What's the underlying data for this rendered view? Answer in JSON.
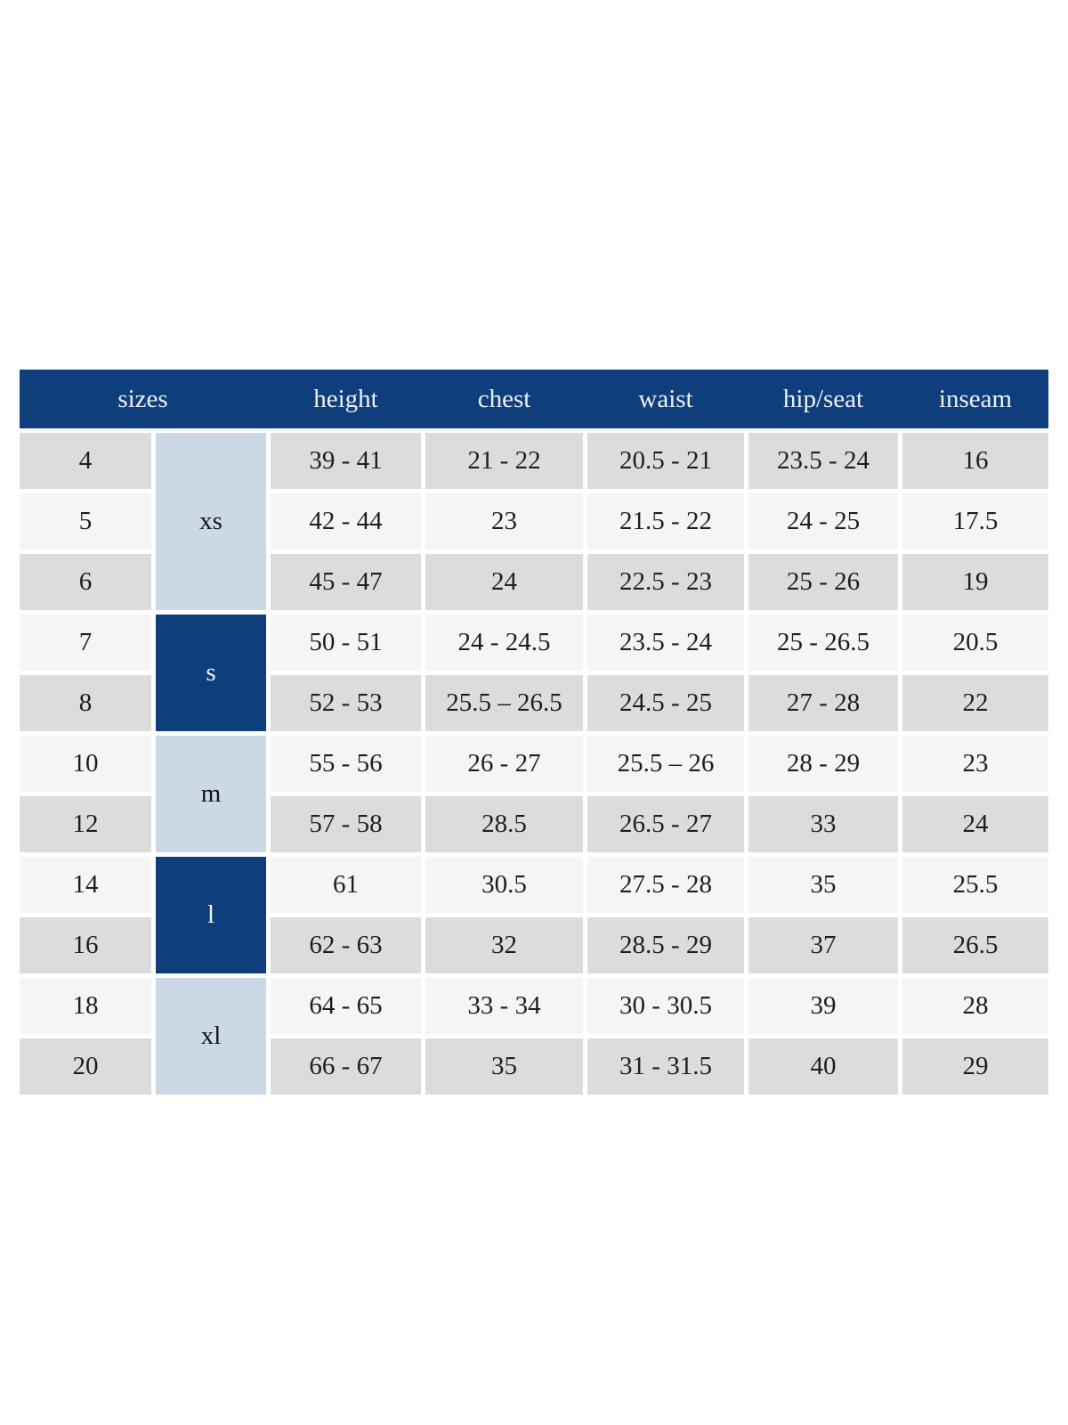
{
  "chart_data": {
    "type": "table",
    "columns": [
      "sizes",
      "height",
      "chest",
      "waist",
      "hip/seat",
      "inseam"
    ],
    "size_groups": [
      {
        "label": "xs",
        "sizes": [
          "4",
          "5",
          "6"
        ],
        "variant": "light"
      },
      {
        "label": "s",
        "sizes": [
          "7",
          "8"
        ],
        "variant": "dark"
      },
      {
        "label": "m",
        "sizes": [
          "10",
          "12"
        ],
        "variant": "light"
      },
      {
        "label": "l",
        "sizes": [
          "14",
          "16"
        ],
        "variant": "dark"
      },
      {
        "label": "xl",
        "sizes": [
          "18",
          "20"
        ],
        "variant": "light"
      }
    ],
    "rows": [
      {
        "size": "4",
        "group": "xs",
        "height": "39 - 41",
        "chest": "21 - 22",
        "waist": "20.5 - 21",
        "hip_seat": "23.5 - 24",
        "inseam": "16"
      },
      {
        "size": "5",
        "group": "xs",
        "height": "42 - 44",
        "chest": "23",
        "waist": "21.5 - 22",
        "hip_seat": "24 - 25",
        "inseam": "17.5"
      },
      {
        "size": "6",
        "group": "xs",
        "height": "45 - 47",
        "chest": "24",
        "waist": "22.5 - 23",
        "hip_seat": "25 - 26",
        "inseam": "19"
      },
      {
        "size": "7",
        "group": "s",
        "height": "50 - 51",
        "chest": "24 - 24.5",
        "waist": "23.5 - 24",
        "hip_seat": "25 - 26.5",
        "inseam": "20.5"
      },
      {
        "size": "8",
        "group": "s",
        "height": "52 - 53",
        "chest": "25.5 – 26.5",
        "waist": "24.5 - 25",
        "hip_seat": "27 - 28",
        "inseam": "22"
      },
      {
        "size": "10",
        "group": "m",
        "height": "55 - 56",
        "chest": "26 - 27",
        "waist": "25.5 – 26",
        "hip_seat": "28 - 29",
        "inseam": "23"
      },
      {
        "size": "12",
        "group": "m",
        "height": "57 - 58",
        "chest": "28.5",
        "waist": "26.5 - 27",
        "hip_seat": "33",
        "inseam": "24"
      },
      {
        "size": "14",
        "group": "l",
        "height": "61",
        "chest": "30.5",
        "waist": "27.5 - 28",
        "hip_seat": "35",
        "inseam": "25.5"
      },
      {
        "size": "16",
        "group": "l",
        "height": "62 - 63",
        "chest": "32",
        "waist": "28.5 - 29",
        "hip_seat": "37",
        "inseam": "26.5"
      },
      {
        "size": "18",
        "group": "xl",
        "height": "64 - 65",
        "chest": "33 - 34",
        "waist": "30 - 30.5",
        "hip_seat": "39",
        "inseam": "28"
      },
      {
        "size": "20",
        "group": "xl",
        "height": "66 - 67",
        "chest": "35",
        "waist": "31 - 31.5",
        "hip_seat": "40",
        "inseam": "29"
      }
    ]
  },
  "colors": {
    "page_bg": "#ffffff",
    "header_bg": "#0f3e7d",
    "header_text": "#edf1f7",
    "group_dark_bg": "#0f3e7d",
    "group_dark_text": "#f2f5fa",
    "group_light_bg": "#ccd8e6",
    "group_light_text": "#14141e",
    "row_grey": "#dcdcdc",
    "row_light": "#f5f5f5",
    "cell_text": "#1e1e1e"
  }
}
